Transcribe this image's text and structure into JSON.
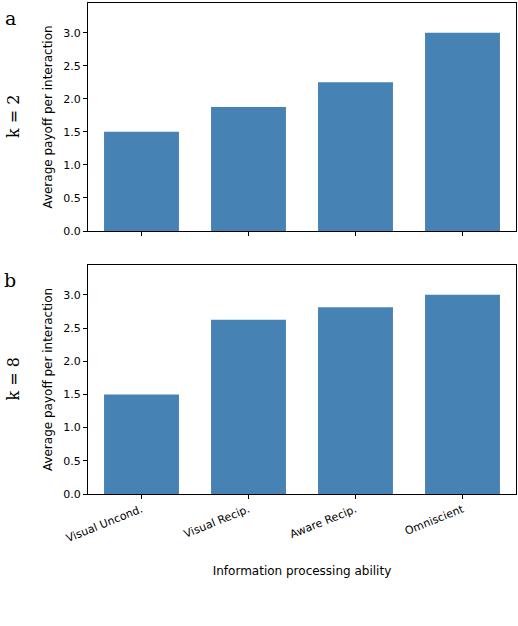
{
  "chart_data": [
    {
      "type": "bar",
      "panel_label": "a",
      "row_label": "k = 2",
      "ylabel": "Average payoff per interaction",
      "categories": [
        "Visual Uncond.",
        "Visual Recip.",
        "Aware Recip.",
        "Omniscient"
      ],
      "values": [
        1.5,
        1.875,
        2.25,
        3.0
      ],
      "color": "#4682b4",
      "ylim": [
        0,
        3.45
      ],
      "yticks": [
        {
          "value": 0,
          "label": "0.0"
        },
        0.5,
        {
          "value": 1,
          "label": "1.0"
        },
        1.5,
        {
          "value": 2,
          "label": "2.0"
        },
        2.5,
        {
          "value": 3,
          "label": "3.0"
        }
      ],
      "grid": false,
      "tick_labels": "y"
    },
    {
      "type": "bar",
      "panel_label": "b",
      "row_label": "k = 8",
      "ylabel": "Average payoff per interaction",
      "xlabel": "Information processing ability",
      "categories": [
        "Visual Uncond.",
        "Visual Recip.",
        "Aware Recip.",
        "Omniscient"
      ],
      "values": [
        1.5,
        2.625,
        2.8125,
        3.0
      ],
      "color": "#4682b4",
      "ylim": [
        0,
        3.45
      ],
      "yticks": [
        {
          "value": 0,
          "label": "0.0"
        },
        0.5,
        {
          "value": 1,
          "label": "1.0"
        },
        1.5,
        {
          "value": 2,
          "label": "2.0"
        },
        2.5,
        {
          "value": 3,
          "label": "3.0"
        }
      ],
      "grid": false
    }
  ]
}
